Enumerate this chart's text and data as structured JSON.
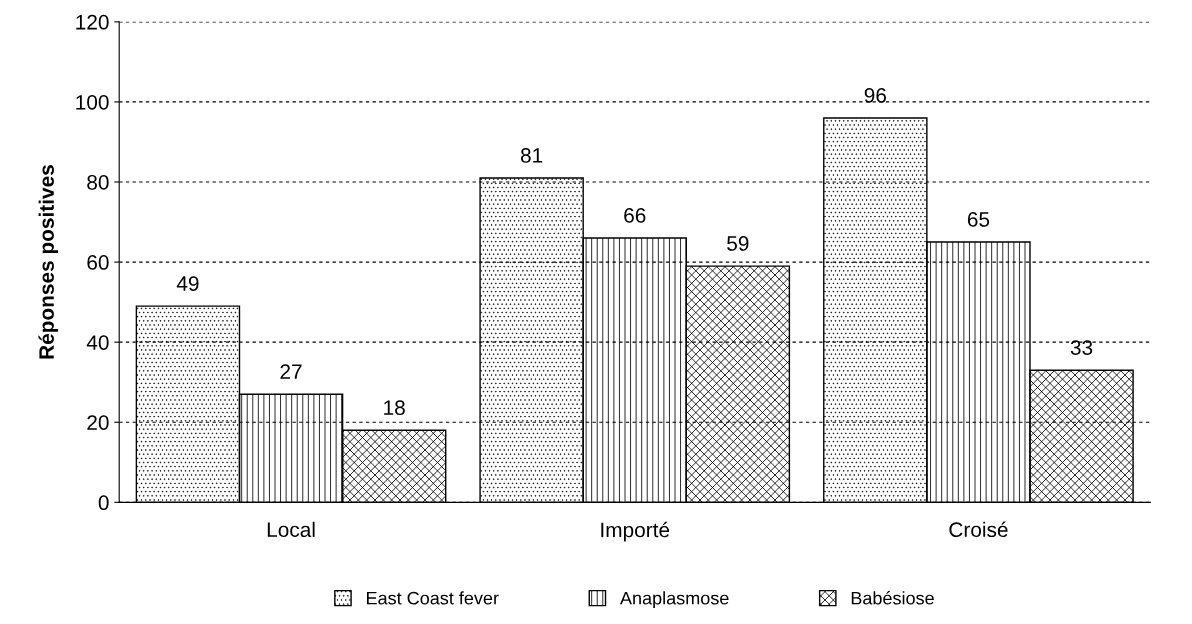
{
  "chart_data": {
    "type": "bar",
    "ylabel": "Réponses positives",
    "categories": [
      "Local",
      "Importé",
      "Croisé"
    ],
    "series": [
      {
        "name": "East Coast fever",
        "color": "#000000",
        "values": [
          49,
          81,
          96
        ]
      },
      {
        "name": "Anaplasmose",
        "color": "#000000",
        "values": [
          27,
          66,
          65
        ]
      },
      {
        "name": "Babésiose",
        "color": "#000000",
        "values": [
          18,
          59,
          33
        ]
      }
    ],
    "ylim": [
      0,
      120
    ],
    "yticks": [
      0,
      20,
      40,
      60,
      80,
      100,
      120
    ],
    "grid": "y",
    "legend": "bottom",
    "data_labels": true
  }
}
